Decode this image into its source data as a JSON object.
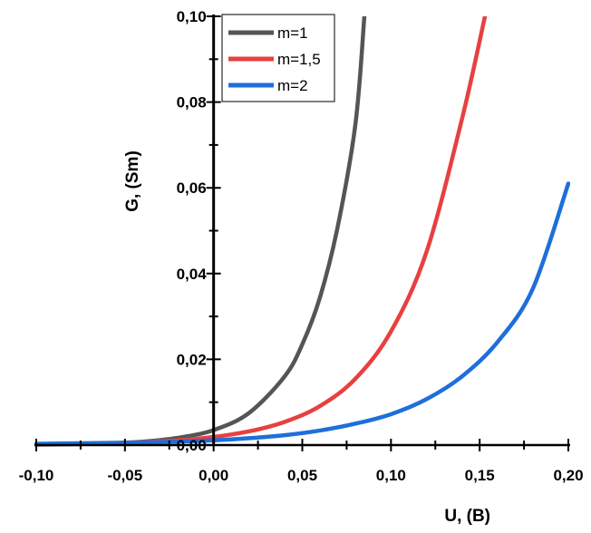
{
  "chart_data": {
    "type": "line",
    "xlabel": "U, (B)",
    "ylabel": "G, (Sm)",
    "xlim": [
      -0.1,
      0.2
    ],
    "ylim": [
      0.0,
      0.1
    ],
    "x_ticks": [
      "-0,10",
      "-0,05",
      "0,00",
      "0,05",
      "0,10",
      "0,15",
      "0,20"
    ],
    "y_ticks": [
      "0,00",
      "0,02",
      "0,04",
      "0,06",
      "0,08",
      "0,10"
    ],
    "legend_position": "top-left",
    "grid": false,
    "series": [
      {
        "name": "m=1",
        "color": "#555555",
        "x": [
          -0.1,
          -0.08,
          -0.06,
          -0.04,
          -0.02,
          0.0,
          0.02,
          0.04,
          0.05,
          0.06,
          0.07,
          0.08,
          0.085
        ],
        "y": [
          0.0001,
          0.0002,
          0.0004,
          0.0008,
          0.0017,
          0.0035,
          0.0075,
          0.016,
          0.0235,
          0.0345,
          0.051,
          0.075,
          0.1
        ]
      },
      {
        "name": "m=1,5",
        "color": "#e84040",
        "x": [
          -0.1,
          -0.08,
          -0.06,
          -0.04,
          -0.02,
          0.0,
          0.02,
          0.04,
          0.06,
          0.08,
          0.1,
          0.12,
          0.14,
          0.153
        ],
        "y": [
          0.0002,
          0.0003,
          0.0004,
          0.0007,
          0.0011,
          0.0019,
          0.0032,
          0.0054,
          0.0091,
          0.0155,
          0.0265,
          0.045,
          0.076,
          0.1
        ]
      },
      {
        "name": "m=2",
        "color": "#1e6fd9",
        "x": [
          -0.1,
          -0.08,
          -0.06,
          -0.04,
          -0.02,
          0.0,
          0.02,
          0.04,
          0.06,
          0.08,
          0.1,
          0.12,
          0.14,
          0.16,
          0.18,
          0.2
        ],
        "y": [
          0.0003,
          0.0004,
          0.0005,
          0.0006,
          0.0008,
          0.0011,
          0.0016,
          0.0023,
          0.0034,
          0.005,
          0.0072,
          0.0107,
          0.016,
          0.024,
          0.0365,
          0.061
        ]
      }
    ]
  }
}
